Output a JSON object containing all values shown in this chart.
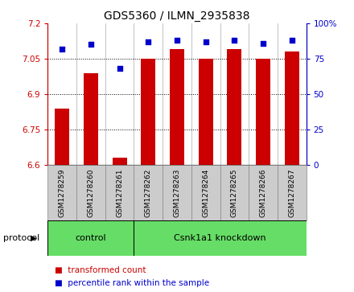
{
  "title": "GDS5360 / ILMN_2935838",
  "samples": [
    "GSM1278259",
    "GSM1278260",
    "GSM1278261",
    "GSM1278262",
    "GSM1278263",
    "GSM1278264",
    "GSM1278265",
    "GSM1278266",
    "GSM1278267"
  ],
  "bar_values": [
    6.84,
    6.99,
    6.63,
    7.05,
    7.09,
    7.05,
    7.09,
    7.05,
    7.08
  ],
  "percentile_values": [
    82,
    85,
    68,
    87,
    88,
    87,
    88,
    86,
    88
  ],
  "ylim_left": [
    6.6,
    7.2
  ],
  "ylim_right": [
    0,
    100
  ],
  "yticks_left": [
    6.6,
    6.75,
    6.9,
    7.05,
    7.2
  ],
  "yticks_right": [
    0,
    25,
    50,
    75,
    100
  ],
  "ytick_labels_left": [
    "6.6",
    "6.75",
    "6.9",
    "7.05",
    "7.2"
  ],
  "ytick_labels_right": [
    "0",
    "25",
    "50",
    "75",
    "100%"
  ],
  "bar_color": "#cc0000",
  "dot_color": "#0000cc",
  "n_control": 3,
  "n_knockdown": 6,
  "control_label": "control",
  "knockdown_label": "Csnk1a1 knockdown",
  "protocol_label": "protocol",
  "legend_bar_label": "transformed count",
  "legend_dot_label": "percentile rank within the sample",
  "group_color": "#66dd66",
  "tick_bg_color": "#cccccc",
  "bar_width": 0.5
}
